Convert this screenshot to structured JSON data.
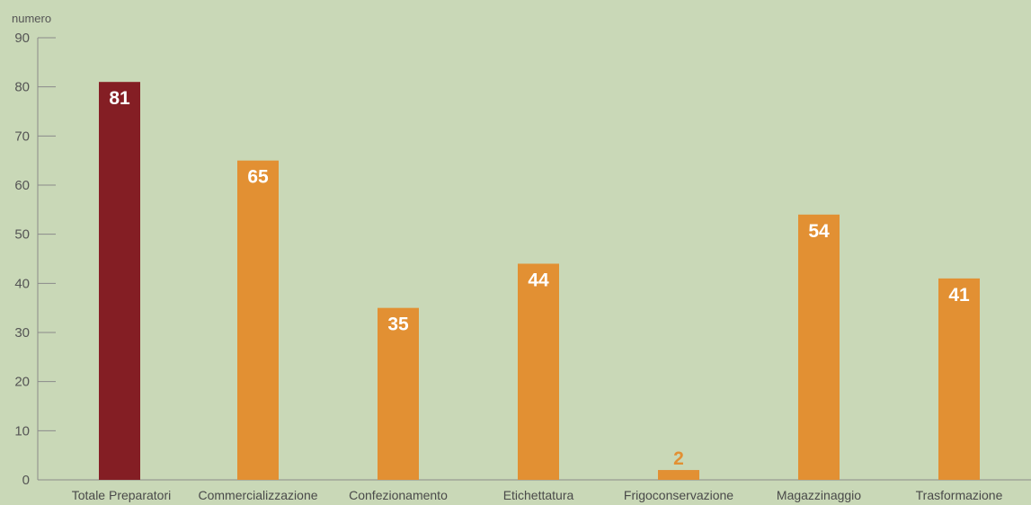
{
  "chart_data": {
    "type": "bar",
    "ylabel": "numero",
    "xlabel": "",
    "ylim": [
      0,
      90
    ],
    "yticks": [
      0,
      10,
      20,
      30,
      40,
      50,
      60,
      70,
      80,
      90
    ],
    "grid": false,
    "categories": [
      "Totale Preparatori",
      "Commercializzazione",
      "Confezionamento",
      "Etichettatura",
      "Frigoconservazione",
      "Magazzinaggio",
      "Trasformazione"
    ],
    "values": [
      81,
      65,
      35,
      44,
      2,
      54,
      41
    ],
    "bar_colors": [
      "#841e24",
      "#e29033",
      "#e29033",
      "#e29033",
      "#e29033",
      "#e29033",
      "#e29033"
    ],
    "colors": {
      "background": "#c9d8b7",
      "axis": "#8a8a8a",
      "label_inside": "#ffffff",
      "label_outside": "#e29033"
    }
  }
}
